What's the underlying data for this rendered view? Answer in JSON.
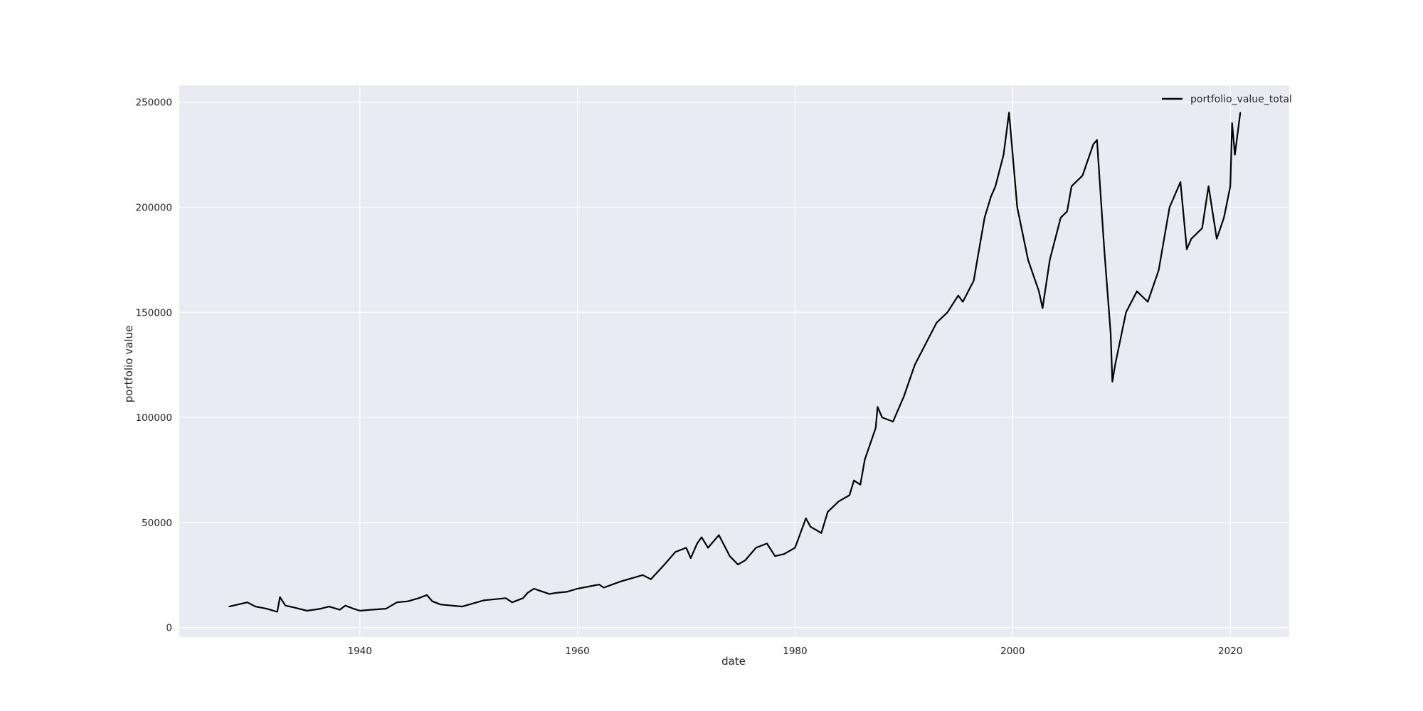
{
  "chart_data": {
    "type": "line",
    "title": "",
    "xlabel": "date",
    "ylabel": "portfolio value",
    "x_scale": "date",
    "xlim": [
      "1923-06-01",
      "2025-06-01"
    ],
    "ylim": [
      -4500,
      258000
    ],
    "xticks": [
      {
        "date": "1940-01-01",
        "label": "1940"
      },
      {
        "date": "1960-01-01",
        "label": "1960"
      },
      {
        "date": "1980-01-01",
        "label": "1980"
      },
      {
        "date": "2000-01-01",
        "label": "2000"
      },
      {
        "date": "2020-01-01",
        "label": "2020"
      }
    ],
    "yticks": [
      {
        "value": 0,
        "label": "0"
      },
      {
        "value": 50000,
        "label": "50000"
      },
      {
        "value": 100000,
        "label": "100000"
      },
      {
        "value": 150000,
        "label": "150000"
      },
      {
        "value": 200000,
        "label": "200000"
      },
      {
        "value": 250000,
        "label": "250000"
      }
    ],
    "grid": true,
    "background": "#eaeaf2",
    "grid_color": "#ffffff",
    "legend": {
      "position": "top-right"
    },
    "series": [
      {
        "name": "portfolio_value_total",
        "color": "#000000",
        "points": [
          [
            "1928-01-01",
            10000
          ],
          [
            "1929-09-01",
            12000
          ],
          [
            "1930-06-01",
            10000
          ],
          [
            "1931-06-01",
            9000
          ],
          [
            "1932-06-01",
            7500
          ],
          [
            "1932-09-01",
            14500
          ],
          [
            "1933-03-01",
            10500
          ],
          [
            "1934-01-01",
            9500
          ],
          [
            "1935-03-01",
            8000
          ],
          [
            "1936-06-01",
            9000
          ],
          [
            "1937-03-01",
            10000
          ],
          [
            "1938-03-01",
            8500
          ],
          [
            "1938-09-01",
            10500
          ],
          [
            "1939-06-01",
            9000
          ],
          [
            "1940-01-01",
            8000
          ],
          [
            "1941-01-01",
            8500
          ],
          [
            "1942-06-01",
            9000
          ],
          [
            "1943-06-01",
            12000
          ],
          [
            "1944-06-01",
            12500
          ],
          [
            "1945-06-01",
            14000
          ],
          [
            "1946-03-01",
            15500
          ],
          [
            "1946-09-01",
            12500
          ],
          [
            "1947-06-01",
            11000
          ],
          [
            "1948-06-01",
            10500
          ],
          [
            "1949-06-01",
            10000
          ],
          [
            "1950-06-01",
            11500
          ],
          [
            "1951-06-01",
            13000
          ],
          [
            "1952-06-01",
            13500
          ],
          [
            "1953-06-01",
            14000
          ],
          [
            "1954-01-01",
            12000
          ],
          [
            "1955-01-01",
            14000
          ],
          [
            "1955-06-01",
            16500
          ],
          [
            "1956-01-01",
            18500
          ],
          [
            "1957-06-01",
            16000
          ],
          [
            "1958-01-01",
            16500
          ],
          [
            "1959-01-01",
            17000
          ],
          [
            "1960-01-01",
            18500
          ],
          [
            "1962-01-01",
            20500
          ],
          [
            "1962-06-01",
            19000
          ],
          [
            "1964-01-01",
            22000
          ],
          [
            "1966-01-01",
            25000
          ],
          [
            "1966-10-01",
            23000
          ],
          [
            "1968-01-01",
            30000
          ],
          [
            "1969-01-01",
            36000
          ],
          [
            "1970-01-01",
            38000
          ],
          [
            "1970-06-01",
            33000
          ],
          [
            "1971-01-01",
            40000
          ],
          [
            "1971-06-01",
            43000
          ],
          [
            "1972-01-01",
            38000
          ],
          [
            "1973-01-01",
            44000
          ],
          [
            "1974-01-01",
            34000
          ],
          [
            "1974-10-01",
            30000
          ],
          [
            "1975-06-01",
            32000
          ],
          [
            "1976-06-01",
            38000
          ],
          [
            "1977-06-01",
            40000
          ],
          [
            "1978-03-01",
            34000
          ],
          [
            "1979-01-01",
            35000
          ],
          [
            "1980-01-01",
            38000
          ],
          [
            "1981-01-01",
            52000
          ],
          [
            "1981-06-01",
            48000
          ],
          [
            "1982-06-01",
            45000
          ],
          [
            "1983-01-01",
            55000
          ],
          [
            "1984-01-01",
            60000
          ],
          [
            "1985-01-01",
            63000
          ],
          [
            "1985-06-01",
            70000
          ],
          [
            "1986-01-01",
            68000
          ],
          [
            "1986-06-01",
            80000
          ],
          [
            "1987-06-01",
            95000
          ],
          [
            "1987-08-01",
            105000
          ],
          [
            "1988-01-01",
            100000
          ],
          [
            "1989-01-01",
            98000
          ],
          [
            "1990-01-01",
            110000
          ],
          [
            "1991-01-01",
            125000
          ],
          [
            "1992-01-01",
            135000
          ],
          [
            "1993-01-01",
            145000
          ],
          [
            "1994-01-01",
            150000
          ],
          [
            "1995-01-01",
            158000
          ],
          [
            "1995-06-01",
            155000
          ],
          [
            "1996-06-01",
            165000
          ],
          [
            "1997-06-01",
            195000
          ],
          [
            "1998-01-01",
            205000
          ],
          [
            "1998-06-01",
            210000
          ],
          [
            "1999-03-01",
            225000
          ],
          [
            "1999-09-01",
            245000
          ],
          [
            "2000-06-01",
            200000
          ],
          [
            "2001-06-01",
            175000
          ],
          [
            "2002-06-01",
            160000
          ],
          [
            "2002-10-01",
            152000
          ],
          [
            "2003-06-01",
            175000
          ],
          [
            "2004-06-01",
            195000
          ],
          [
            "2005-01-01",
            198000
          ],
          [
            "2005-06-01",
            210000
          ],
          [
            "2006-06-01",
            215000
          ],
          [
            "2007-06-01",
            230000
          ],
          [
            "2007-10-01",
            232000
          ],
          [
            "2008-06-01",
            180000
          ],
          [
            "2009-01-01",
            140000
          ],
          [
            "2009-03-01",
            117000
          ],
          [
            "2009-06-01",
            125000
          ],
          [
            "2010-06-01",
            150000
          ],
          [
            "2011-06-01",
            160000
          ],
          [
            "2012-06-01",
            155000
          ],
          [
            "2013-06-01",
            170000
          ],
          [
            "2014-06-01",
            200000
          ],
          [
            "2015-06-01",
            212000
          ],
          [
            "2016-01-01",
            180000
          ],
          [
            "2016-06-01",
            185000
          ],
          [
            "2017-06-01",
            190000
          ],
          [
            "2018-01-01",
            210000
          ],
          [
            "2018-10-01",
            185000
          ],
          [
            "2019-06-01",
            195000
          ],
          [
            "2020-01-01",
            210000
          ],
          [
            "2020-03-01",
            240000
          ],
          [
            "2020-06-01",
            225000
          ],
          [
            "2020-12-01",
            245000
          ]
        ]
      }
    ]
  }
}
